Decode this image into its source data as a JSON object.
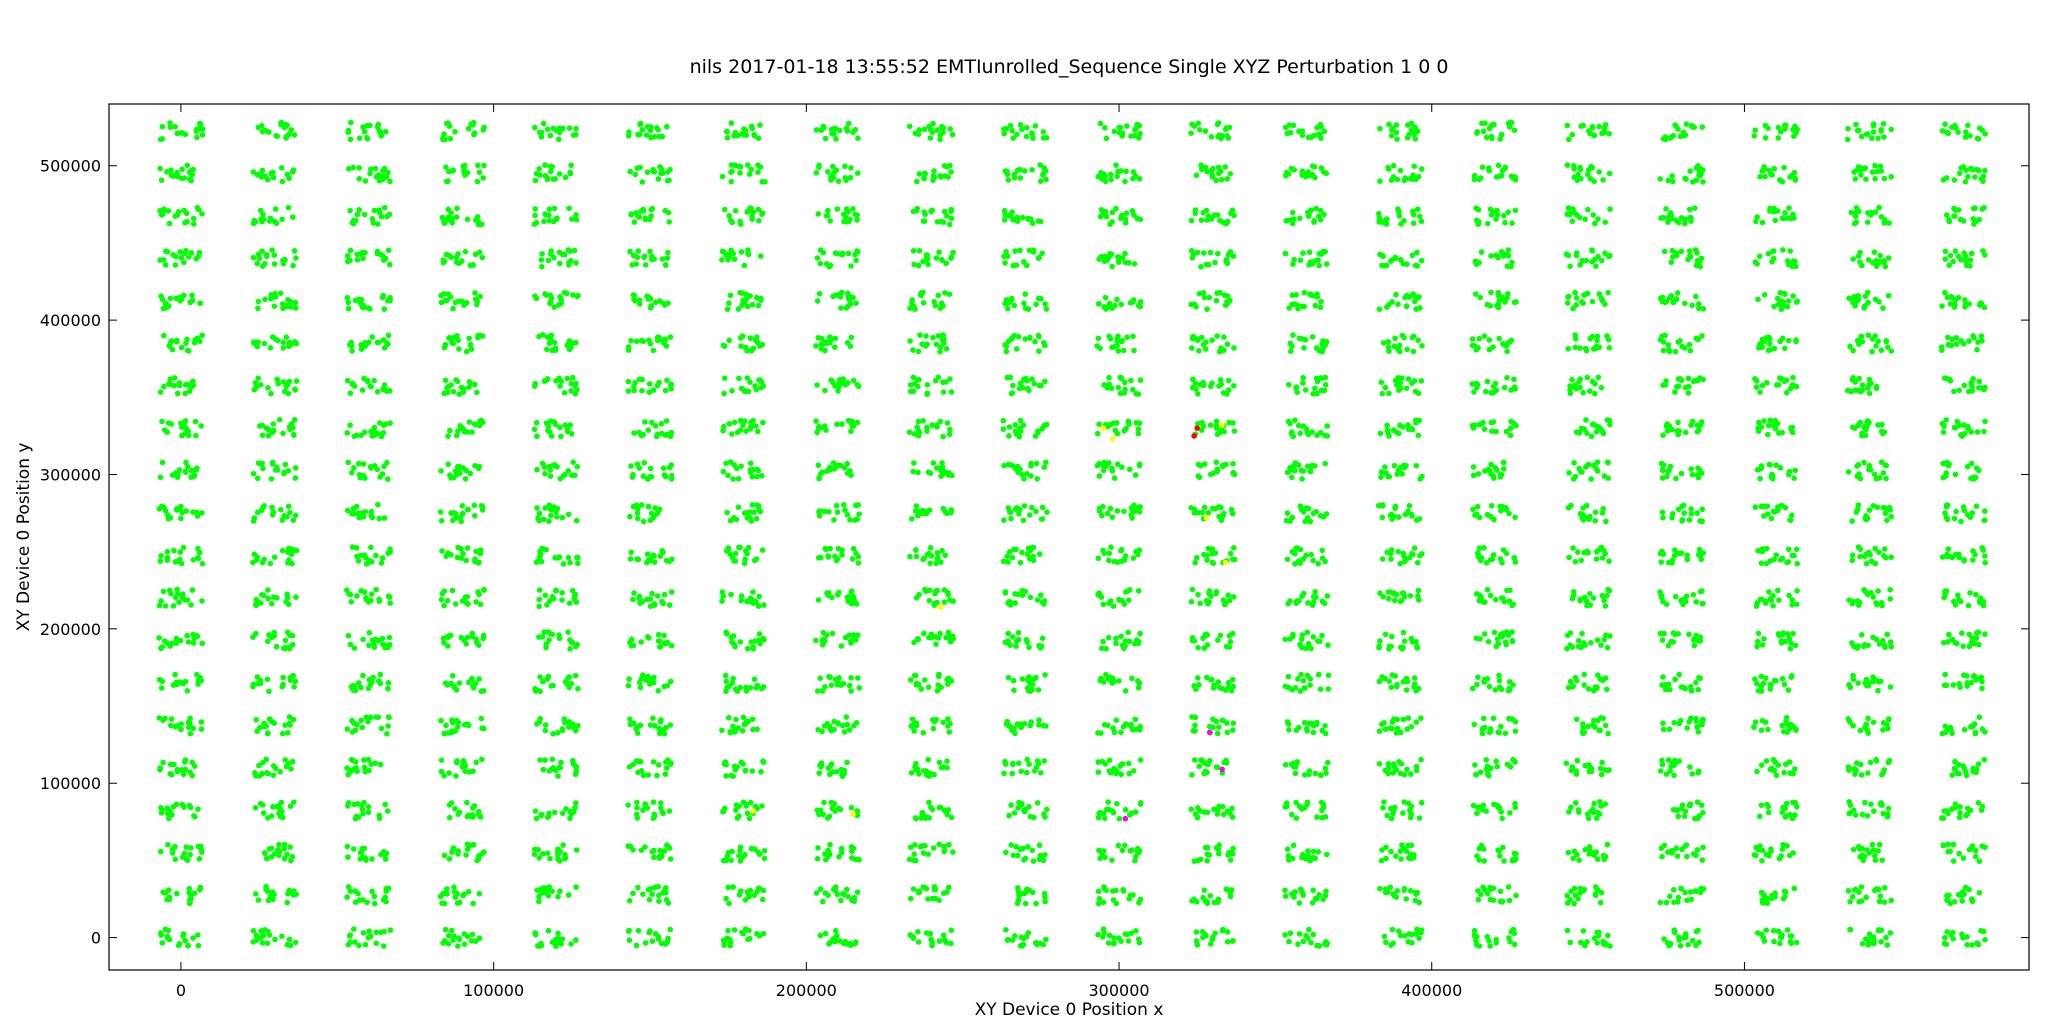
{
  "chart_data": {
    "type": "scatter",
    "title": "nils 2017-01-18 13:55:52 EMTIunrolled_Sequence Single XYZ Perturbation 1 0 0",
    "xlabel": "XY Device 0 Position  x",
    "ylabel": "XY Device 0 Position  y",
    "xlim": [
      -23000,
      591000
    ],
    "ylim": [
      -21000,
      540000
    ],
    "xticks": [
      0,
      100000,
      200000,
      300000,
      400000,
      500000
    ],
    "yticks": [
      0,
      100000,
      200000,
      300000,
      400000,
      500000
    ],
    "grid": false,
    "legend": "none",
    "grid_pattern": {
      "columns": 20,
      "rows": 20,
      "x_start": 0,
      "x_step": 30000,
      "y_start": 0,
      "y_step": 27500,
      "cluster_width": 14000,
      "cluster_height": 11000,
      "points_per_cluster": 18
    },
    "series": [
      {
        "color": "#00ff00",
        "description_points": "main"
      },
      {
        "color": "#ffff00",
        "points": [
          [
            295000,
            330000
          ],
          [
            298000,
            323000
          ],
          [
            333000,
            332000
          ],
          [
            328000,
            272000
          ],
          [
            334000,
            243000
          ],
          [
            243000,
            214000
          ],
          [
            183000,
            82000
          ],
          [
            215000,
            80000
          ]
        ]
      },
      {
        "color": "#ff0000",
        "points": [
          [
            324000,
            325000
          ],
          [
            325000,
            330000
          ]
        ]
      },
      {
        "color": "#ff00ff",
        "points": [
          [
            329000,
            133000
          ],
          [
            333000,
            109000
          ],
          [
            302000,
            77000
          ]
        ]
      }
    ],
    "colors": {
      "main": "#00ff00",
      "axis": "#000000",
      "background": "#ffffff"
    }
  }
}
